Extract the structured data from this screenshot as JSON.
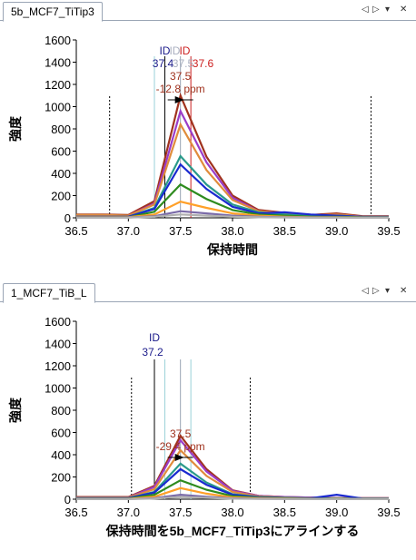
{
  "panels": [
    {
      "tab_label": "5b_MCF7_TiTip3",
      "controls": [
        "◁",
        "▷",
        "▾",
        "✕"
      ]
    },
    {
      "tab_label": "1_MCF7_TiB_L",
      "controls": [
        "◁",
        "▷",
        "▾",
        "✕"
      ]
    }
  ],
  "colors": {
    "tab_border": "#9aa5b5",
    "series": [
      "#a0321e",
      "#9b3cc8",
      "#e08c3c",
      "#2a9a8a",
      "#1a2ad0",
      "#2e8b1e",
      "#ffa028",
      "#7a6aa8",
      "#b0b0b0"
    ]
  },
  "chart_data": [
    {
      "type": "line",
      "ylabel": "強度",
      "xlabel": "保持時間",
      "xlim": [
        36.5,
        39.5
      ],
      "ylim": [
        0,
        1600
      ],
      "xticks": [
        "36.5",
        "37.0",
        "37.5",
        "38.0",
        "38.5",
        "39.0",
        "39.5"
      ],
      "yticks": [
        "0",
        "200",
        "400",
        "600",
        "800",
        "1000",
        "1200",
        "1400",
        "1600"
      ],
      "x": [
        36.5,
        36.75,
        37.0,
        37.25,
        37.5,
        37.75,
        38.0,
        38.25,
        38.5,
        38.75,
        39.0,
        39.25,
        39.5
      ],
      "series": [
        {
          "color": "#a0321e",
          "values": [
            30,
            30,
            25,
            150,
            1100,
            550,
            200,
            70,
            45,
            25,
            40,
            15,
            15
          ]
        },
        {
          "color": "#9b3cc8",
          "values": [
            20,
            20,
            20,
            130,
            960,
            500,
            180,
            60,
            40,
            20,
            30,
            10,
            10
          ]
        },
        {
          "color": "#e08c3c",
          "values": [
            25,
            25,
            20,
            120,
            840,
            430,
            160,
            60,
            40,
            20,
            30,
            10,
            10
          ]
        },
        {
          "color": "#2a9a8a",
          "values": [
            10,
            10,
            10,
            90,
            555,
            300,
            120,
            50,
            30,
            15,
            20,
            8,
            8
          ]
        },
        {
          "color": "#1a2ad0",
          "values": [
            10,
            10,
            10,
            80,
            480,
            260,
            100,
            40,
            50,
            30,
            20,
            8,
            8
          ]
        },
        {
          "color": "#2e8b1e",
          "values": [
            5,
            5,
            5,
            55,
            300,
            170,
            70,
            30,
            20,
            10,
            10,
            5,
            5
          ]
        },
        {
          "color": "#ffa028",
          "values": [
            5,
            5,
            5,
            30,
            145,
            90,
            40,
            20,
            10,
            5,
            5,
            3,
            3
          ]
        },
        {
          "color": "#7a6aa8",
          "values": [
            3,
            3,
            3,
            15,
            60,
            40,
            20,
            10,
            5,
            3,
            3,
            2,
            2
          ]
        },
        {
          "color": "#b0b0b0",
          "values": [
            2,
            2,
            2,
            10,
            30,
            20,
            10,
            5,
            3,
            2,
            2,
            1,
            1
          ]
        }
      ],
      "boundaries": [
        36.82,
        39.33
      ],
      "id_lines": [
        {
          "x": 37.35,
          "color": "#000000"
        },
        {
          "x": 37.5,
          "color": "#9aa5b5"
        },
        {
          "x": 37.6,
          "color": "#cc2020"
        },
        {
          "x": 37.25,
          "color": "#9ad0d8"
        }
      ],
      "id_labels": [
        {
          "text": "ID",
          "color": "#1a1a8a"
        },
        {
          "text": "ID",
          "color": "#aab0c0"
        },
        {
          "text": "ID",
          "color": "#cc2020"
        }
      ],
      "id_values": [
        {
          "text": "37.4",
          "color": "#1a1a8a"
        },
        {
          "text": "37.5",
          "color": "#aab0c0"
        },
        {
          "text": "37.6",
          "color": "#cc2020"
        }
      ],
      "peak_annotation": {
        "rt": "37.5",
        "ppm": "-12.8 ppm",
        "color": "#a0321e",
        "x": 37.5
      }
    },
    {
      "type": "line",
      "ylabel": "強度",
      "xlabel": "保持時間を5b_MCF7_TiTip3にアラインする",
      "xlim": [
        36.5,
        39.5
      ],
      "ylim": [
        0,
        1600
      ],
      "xticks": [
        "36.5",
        "37.0",
        "37.5",
        "38.0",
        "38.5",
        "39.0",
        "39.5"
      ],
      "yticks": [
        "0",
        "200",
        "400",
        "600",
        "800",
        "1000",
        "1200",
        "1400",
        "1600"
      ],
      "x": [
        36.5,
        36.75,
        37.0,
        37.25,
        37.5,
        37.75,
        38.0,
        38.25,
        38.5,
        38.75,
        39.0,
        39.25,
        39.5
      ],
      "series": [
        {
          "color": "#a0321e",
          "values": [
            20,
            20,
            20,
            120,
            570,
            270,
            80,
            30,
            20,
            15,
            10,
            10,
            10
          ]
        },
        {
          "color": "#9b3cc8",
          "values": [
            15,
            15,
            15,
            110,
            530,
            250,
            75,
            30,
            20,
            15,
            10,
            10,
            10
          ]
        },
        {
          "color": "#e08c3c",
          "values": [
            15,
            15,
            15,
            90,
            440,
            210,
            65,
            25,
            15,
            10,
            8,
            8,
            8
          ]
        },
        {
          "color": "#2a9a8a",
          "values": [
            10,
            10,
            10,
            65,
            320,
            150,
            45,
            20,
            12,
            8,
            6,
            6,
            6
          ]
        },
        {
          "color": "#1a2ad0",
          "values": [
            10,
            10,
            10,
            60,
            270,
            130,
            40,
            18,
            10,
            8,
            40,
            6,
            6
          ]
        },
        {
          "color": "#2e8b1e",
          "values": [
            5,
            5,
            5,
            40,
            170,
            85,
            28,
            12,
            8,
            5,
            4,
            4,
            4
          ]
        },
        {
          "color": "#ffa028",
          "values": [
            3,
            3,
            3,
            22,
            100,
            50,
            16,
            8,
            5,
            3,
            2,
            2,
            2
          ]
        },
        {
          "color": "#7a6aa8",
          "values": [
            2,
            2,
            2,
            10,
            40,
            22,
            8,
            4,
            3,
            2,
            1,
            1,
            1
          ]
        },
        {
          "color": "#b0b0b0",
          "values": [
            1,
            1,
            1,
            6,
            20,
            12,
            5,
            3,
            2,
            1,
            1,
            1,
            1
          ]
        }
      ],
      "boundaries": [
        37.03,
        38.17
      ],
      "id_lines": [
        {
          "x": 37.25,
          "color": "#000000"
        },
        {
          "x": 37.35,
          "color": "#9ad0d8"
        },
        {
          "x": 37.5,
          "color": "#9aa5b5"
        },
        {
          "x": 37.6,
          "color": "#9ad0d8"
        }
      ],
      "id_labels": [
        {
          "text": "ID",
          "color": "#1a1a8a"
        }
      ],
      "id_values": [
        {
          "text": "37.2",
          "color": "#1a1a8a"
        }
      ],
      "peak_annotation": {
        "rt": "37.5",
        "ppm": "-29.4 ppm",
        "color": "#a0321e",
        "x": 37.5
      }
    }
  ]
}
